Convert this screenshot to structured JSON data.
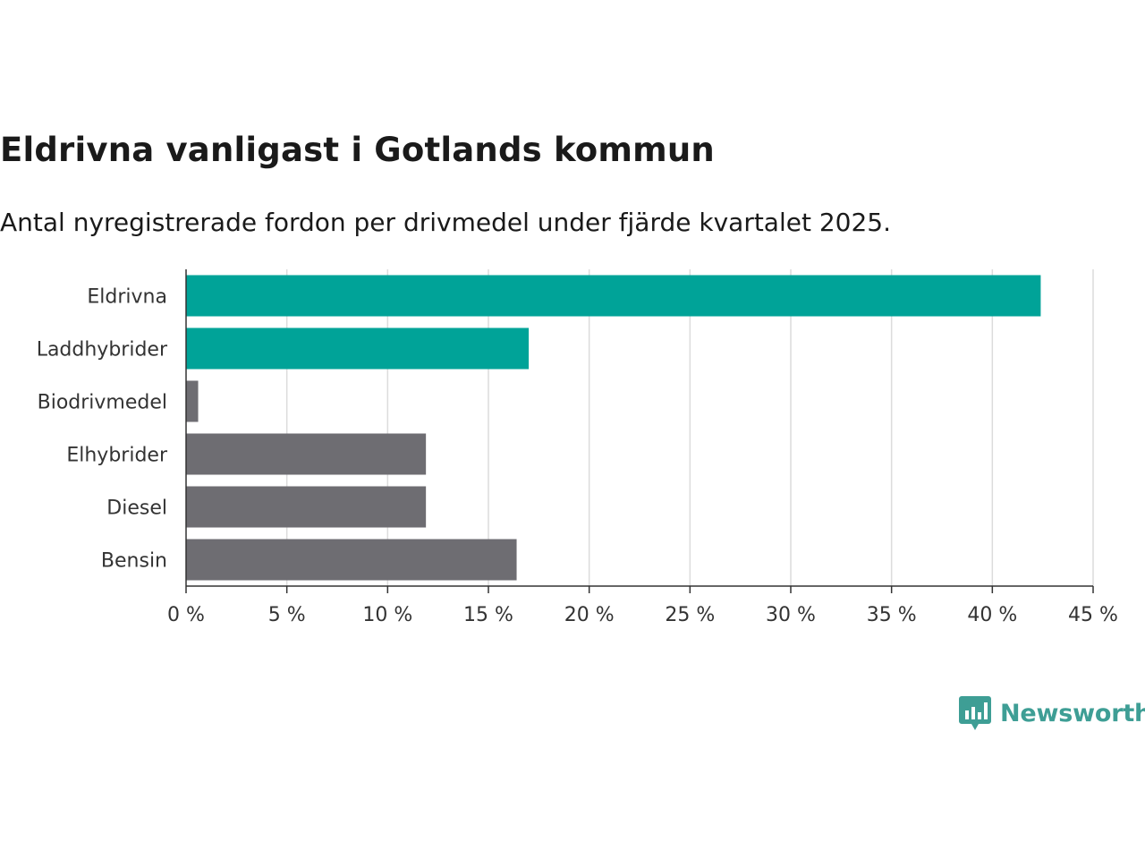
{
  "header": {
    "title": "Eldrivna vanligast i Gotlands kommun",
    "subtitle": "Antal nyregistrerade fordon per drivmedel under fjärde kvartalet 2025."
  },
  "brand": {
    "name": "Newsworthy",
    "color": "#3e9e95"
  },
  "chart_data": {
    "type": "bar",
    "orientation": "horizontal",
    "title": "Eldrivna vanligast i Gotlands kommun",
    "subtitle": "Antal nyregistrerade fordon per drivmedel under fjärde kvartalet 2025.",
    "categories": [
      "Eldrivna",
      "Laddhybrider",
      "Biodrivmedel",
      "Elhybrider",
      "Diesel",
      "Bensin"
    ],
    "values": [
      42.4,
      17.0,
      0.6,
      11.9,
      11.9,
      16.4
    ],
    "colors": [
      "#00a398",
      "#00a398",
      "#6e6d72",
      "#6e6d72",
      "#6e6d72",
      "#6e6d72"
    ],
    "unit": "%",
    "xlim": [
      0,
      45
    ],
    "xticks": [
      0,
      5,
      10,
      15,
      20,
      25,
      30,
      35,
      40,
      45
    ],
    "xtick_labels": [
      "0 %",
      "5 %",
      "10 %",
      "15 %",
      "20 %",
      "25 %",
      "30 %",
      "35 %",
      "40 %",
      "45 %"
    ],
    "grid": true,
    "xlabel": "",
    "ylabel": ""
  }
}
